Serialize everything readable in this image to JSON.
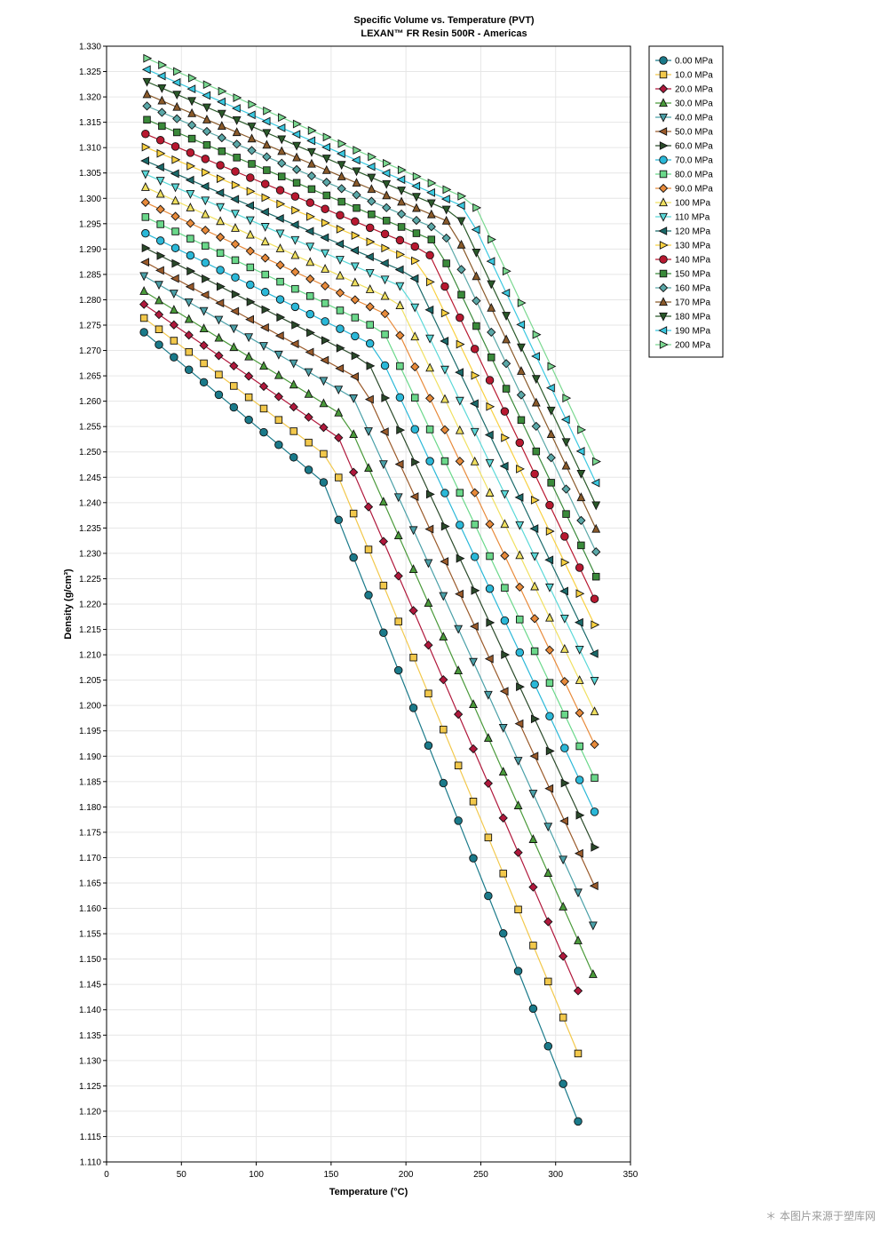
{
  "chart_data": {
    "type": "line",
    "title": "Specific Volume vs. Temperature (PVT)",
    "subtitle": "LEXAN™ FR Resin 500R - Americas",
    "xlabel": "Temperature (°C)",
    "ylabel": "Density (g/cm³)",
    "xlim": [
      0,
      350
    ],
    "ylim": [
      1.11,
      1.33
    ],
    "x_ticks": [
      "0",
      "50",
      "100",
      "150",
      "200",
      "250",
      "300",
      "350"
    ],
    "y_ticks": [
      "1.110",
      "1.115",
      "1.120",
      "1.125",
      "1.130",
      "1.135",
      "1.140",
      "1.145",
      "1.150",
      "1.155",
      "1.160",
      "1.165",
      "1.170",
      "1.175",
      "1.180",
      "1.185",
      "1.190",
      "1.195",
      "1.200",
      "1.205",
      "1.210",
      "1.215",
      "1.220",
      "1.225",
      "1.230",
      "1.235",
      "1.240",
      "1.245",
      "1.250",
      "1.255",
      "1.260",
      "1.265",
      "1.270",
      "1.275",
      "1.280",
      "1.285",
      "1.290",
      "1.295",
      "1.300",
      "1.305",
      "1.310",
      "1.315",
      "1.320",
      "1.325",
      "1.330"
    ],
    "grid": true,
    "legend_position": "top-right",
    "series": [
      {
        "name": "0.00 MPa",
        "color": "#1a7a8a",
        "marker": "circle"
      },
      {
        "name": "10.0 MPa",
        "color": "#f2c84b",
        "marker": "square"
      },
      {
        "name": "20.0 MPa",
        "color": "#b0183c",
        "marker": "diamond"
      },
      {
        "name": "30.0 MPa",
        "color": "#4a9a3a",
        "marker": "triangle-up"
      },
      {
        "name": "40.0 MPa",
        "color": "#4aa0a8",
        "marker": "triangle-down"
      },
      {
        "name": "50.0 MPa",
        "color": "#9a5a2a",
        "marker": "triangle-left"
      },
      {
        "name": "60.0 MPa",
        "color": "#2a4a2a",
        "marker": "triangle-right"
      },
      {
        "name": "70.0 MPa",
        "color": "#2ab8d8",
        "marker": "circle"
      },
      {
        "name": "80.0 MPa",
        "color": "#6ad88a",
        "marker": "square"
      },
      {
        "name": "90.0 MPa",
        "color": "#e88a3a",
        "marker": "diamond"
      },
      {
        "name": "100 MPa",
        "color": "#f0e060",
        "marker": "triangle-up"
      },
      {
        "name": "110 MPa",
        "color": "#5ad8d8",
        "marker": "triangle-down"
      },
      {
        "name": "120 MPa",
        "color": "#1a6a6a",
        "marker": "triangle-left"
      },
      {
        "name": "130 MPa",
        "color": "#f8d040",
        "marker": "triangle-right"
      },
      {
        "name": "140 MPa",
        "color": "#b81830",
        "marker": "circle"
      },
      {
        "name": "150 MPa",
        "color": "#3a8a3a",
        "marker": "square"
      },
      {
        "name": "160 MPa",
        "color": "#5aa8a8",
        "marker": "diamond"
      },
      {
        "name": "170 MPa",
        "color": "#8a5a2a",
        "marker": "triangle-up"
      },
      {
        "name": "180 MPa",
        "color": "#2a5a2a",
        "marker": "triangle-down"
      },
      {
        "name": "190 MPa",
        "color": "#3ac8e0",
        "marker": "triangle-left"
      },
      {
        "name": "200 MPa",
        "color": "#7ad890",
        "marker": "triangle-right"
      }
    ],
    "x_start": [
      25,
      25,
      25,
      25,
      25,
      26,
      26,
      26,
      26,
      26,
      26,
      26,
      26,
      26,
      26,
      27,
      27,
      27,
      27,
      27,
      27
    ],
    "x_step": 10,
    "y_start": [
      1.2736,
      1.2764,
      1.2791,
      1.2817,
      1.2847,
      1.2874,
      1.2902,
      1.2931,
      1.2963,
      1.2992,
      1.3022,
      1.3048,
      1.3074,
      1.3101,
      1.3127,
      1.3155,
      1.3182,
      1.3205,
      1.323,
      1.3254,
      1.3276
    ],
    "transition_x": [
      145,
      150,
      155,
      160,
      165,
      170,
      175,
      180,
      185,
      190,
      195,
      200,
      205,
      210,
      215,
      220,
      225,
      230,
      235,
      240,
      245
    ],
    "y_transition": [
      1.244,
      1.2485,
      1.2528,
      1.2568,
      1.2606,
      1.2642,
      1.2676,
      1.2708,
      1.2738,
      1.2767,
      1.2795,
      1.2822,
      1.2848,
      1.2872,
      1.2894,
      1.2915,
      1.2934,
      1.2952,
      1.2968,
      1.2982,
      1.2994
    ],
    "y_end": [
      1.1128,
      1.1257,
      1.1376,
      1.147,
      1.156,
      1.1638,
      1.1714,
      1.1784,
      1.1851,
      1.1917,
      1.1982,
      1.2043,
      1.2096,
      1.2153,
      1.2204,
      1.2254,
      1.2303,
      1.2348,
      1.2395,
      1.2439,
      1.2481
    ],
    "x_end": [
      322,
      323,
      324,
      325,
      326,
      327,
      327,
      327,
      327,
      327,
      327,
      327,
      327,
      327,
      327,
      327,
      327,
      327,
      327,
      327,
      327
    ]
  },
  "watermark": "＊ 本图片来源于塑库网"
}
